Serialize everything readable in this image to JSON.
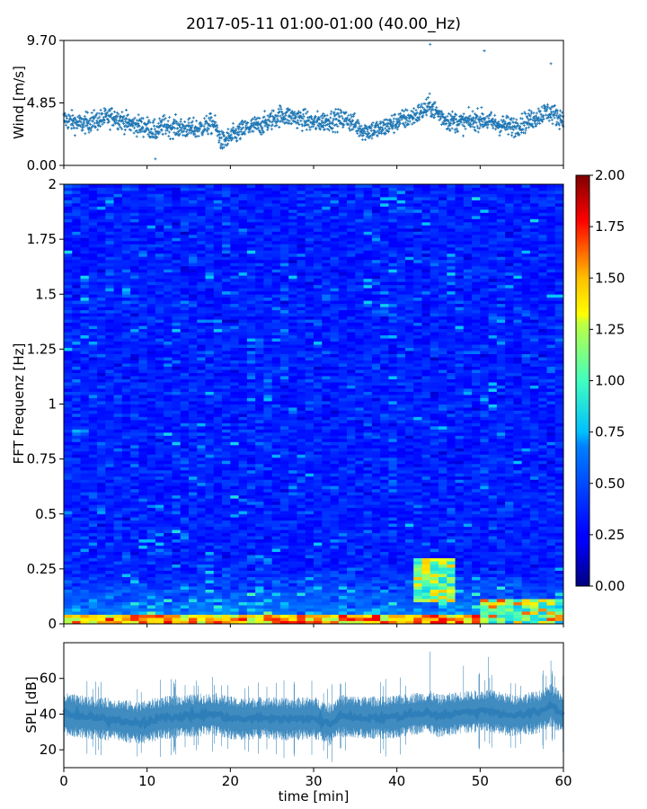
{
  "figure": {
    "title": "2017-05-11 01:00-01:00 (40.00_Hz)"
  },
  "chart_data": [
    {
      "type": "scatter",
      "panel": "wind",
      "xlabel": "",
      "ylabel": "Wind [m/s]",
      "xlim": [
        0,
        60
      ],
      "ylim": [
        0,
        9.7
      ],
      "yticks": [
        "0.00",
        "4.85",
        "9.70"
      ],
      "marker": "+",
      "color": "#1f77b4",
      "trend_minutes": [
        0,
        2,
        4,
        6,
        8,
        10,
        11,
        12,
        14,
        16,
        18,
        19,
        20,
        22,
        24,
        26,
        28,
        30,
        32,
        34,
        36,
        38,
        40,
        42,
        44,
        45,
        46,
        48,
        50,
        52,
        54,
        56,
        58,
        60
      ],
      "trend_values": [
        3.6,
        3.2,
        3.5,
        3.8,
        3.2,
        3.0,
        2.6,
        3.1,
        2.9,
        2.8,
        3.3,
        1.8,
        2.2,
        2.9,
        3.2,
        3.9,
        3.7,
        3.3,
        3.5,
        3.6,
        2.7,
        2.8,
        3.4,
        3.8,
        4.6,
        4.0,
        3.5,
        3.3,
        3.6,
        3.2,
        3.0,
        3.5,
        4.2,
        3.6
      ],
      "peaks": [
        {
          "x": 44,
          "y": 9.4
        },
        {
          "x": 50.5,
          "y": 8.9
        },
        {
          "x": 58.5,
          "y": 7.9
        },
        {
          "x": 11,
          "y": 0.5
        }
      ]
    },
    {
      "type": "heatmap",
      "panel": "spectrogram",
      "xlabel": "",
      "ylabel": "FFT Frequenz [Hz]",
      "xlim": [
        0,
        60
      ],
      "ylim": [
        0,
        2
      ],
      "yticks": [
        "0",
        "0.25",
        "0.5",
        "0.75",
        "1",
        "1.25",
        "1.5",
        "1.75",
        "2"
      ],
      "colormap": "jet",
      "colorbar": {
        "min": 0,
        "max": 2,
        "ticks": [
          "0.00",
          "0.25",
          "0.50",
          "0.75",
          "1.00",
          "1.25",
          "1.50",
          "1.75",
          "2.00"
        ]
      },
      "typical_value": 0.35,
      "low_frequency_band_hz": [
        0,
        0.05
      ],
      "low_frequency_value": 1.8,
      "hot_region": {
        "x": [
          42,
          47
        ],
        "y": [
          0.1,
          0.3
        ],
        "value": 1.1
      }
    },
    {
      "type": "line",
      "panel": "spl",
      "xlabel": "time [min]",
      "ylabel": "SPL [dB]",
      "xlim": [
        0,
        60
      ],
      "ylim": [
        10,
        80
      ],
      "xticks": [
        "0",
        "10",
        "20",
        "30",
        "40",
        "50",
        "60"
      ],
      "yticks": [
        "20",
        "40",
        "60"
      ],
      "color": "#1f77b4",
      "trend_minutes": [
        0,
        3,
        6,
        9,
        12,
        15,
        18,
        21,
        24,
        27,
        30,
        32,
        33,
        36,
        39,
        42,
        44,
        45,
        48,
        51,
        54,
        57,
        58.5,
        60
      ],
      "trend_values": [
        40,
        38,
        37,
        35,
        38,
        39,
        40,
        37,
        38,
        37,
        38,
        34,
        39,
        38,
        38,
        40,
        41,
        39,
        41,
        42,
        39,
        41,
        45,
        40
      ],
      "peaks": [
        {
          "x": 44,
          "y": 75
        },
        {
          "x": 51,
          "y": 72
        },
        {
          "x": 58.5,
          "y": 70
        },
        {
          "x": 48,
          "y": 67
        }
      ]
    }
  ]
}
